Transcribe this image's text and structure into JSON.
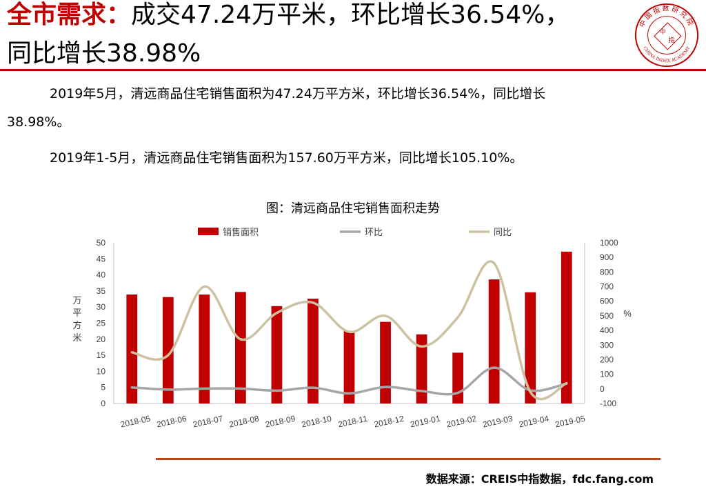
{
  "header": {
    "keyword": "全市需求：",
    "title_rest": "成交47.24万平米，环比增长36.54%，",
    "title_line2": "同比增长38.98%"
  },
  "logo": {
    "top_text": "中国指数研究院",
    "bottom_text": "CHINA INDEX ACADEMY",
    "center_a": "中",
    "center_b": "指",
    "color": "#c00000"
  },
  "body": {
    "para1_a": "2019年5月，清远商品住宅销售面积为47.24万平方米，环比增长36.54%，同比增长",
    "para1_b": "38.98%。",
    "para2": "2019年1-5月，清远商品住宅销售面积为157.60万平方米，同比增长105.10%。"
  },
  "chart_data": {
    "type": "bar",
    "title": "图：清远商品住宅销售面积走势",
    "categories": [
      "2018-05",
      "2018-06",
      "2018-07",
      "2018-08",
      "2018-09",
      "2018-10",
      "2018-11",
      "2018-12",
      "2019-01",
      "2019-02",
      "2019-03",
      "2019-04",
      "2019-05"
    ],
    "series": [
      {
        "name": "销售面积",
        "type": "bar",
        "axis": "left",
        "color": "#c00000",
        "values": [
          33.9,
          33.1,
          33.9,
          34.7,
          30.3,
          32.6,
          22.6,
          25.4,
          21.5,
          15.8,
          38.6,
          34.6,
          47.24
        ]
      },
      {
        "name": "环比",
        "type": "line",
        "axis": "right",
        "color": "#a6a6a6",
        "values": [
          10,
          -5,
          2,
          2,
          -12,
          8,
          -31,
          13,
          -15,
          -27,
          145,
          -10,
          36.54
        ]
      },
      {
        "name": "同比",
        "type": "line",
        "axis": "right",
        "color": "#ccc1a0",
        "values": [
          250,
          230,
          700,
          340,
          520,
          590,
          390,
          500,
          290,
          490,
          860,
          -20,
          38.98
        ]
      }
    ],
    "yleft": {
      "label": "万平方米",
      "min": 0,
      "max": 50,
      "step": 5
    },
    "yright": {
      "label": "%",
      "min": -100,
      "max": 1000,
      "step": 100
    },
    "legend": "top",
    "grid": false
  },
  "footer": {
    "source": "数据来源：CREIS中指数据，fdc.fang.com"
  }
}
